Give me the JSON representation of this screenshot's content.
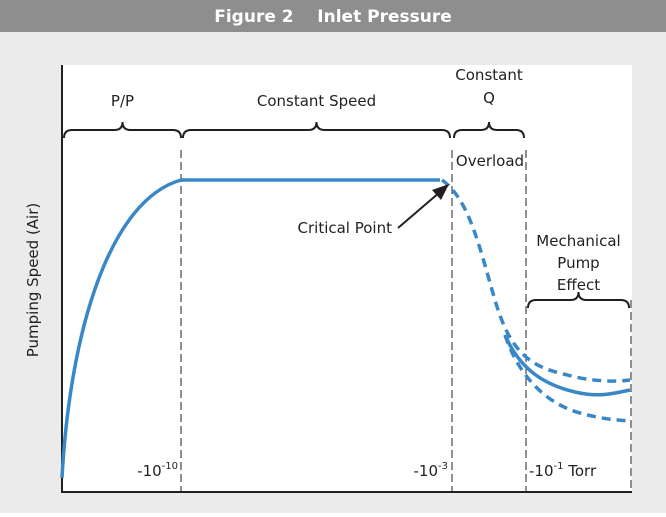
{
  "header": {
    "title": "Figure 2    Inlet Pressure"
  },
  "diagram": {
    "y_axis_label": "Pumping Speed (Air)",
    "regions": [
      {
        "lines": [
          "P/P"
        ]
      },
      {
        "lines": [
          "Constant Speed"
        ]
      },
      {
        "lines": [
          "Constant",
          "Q"
        ]
      },
      {
        "lines": [
          "Mechanical",
          "Pump",
          "Effect"
        ]
      }
    ],
    "overload_label": "Overload",
    "critical_point_label": "Critical Point",
    "pressure_labels": [
      {
        "base": "-10",
        "sup": "-10"
      },
      {
        "base": "-10",
        "sup": "-3"
      },
      {
        "base": "-10",
        "sup": "-1",
        "unit": " Torr"
      }
    ]
  }
}
